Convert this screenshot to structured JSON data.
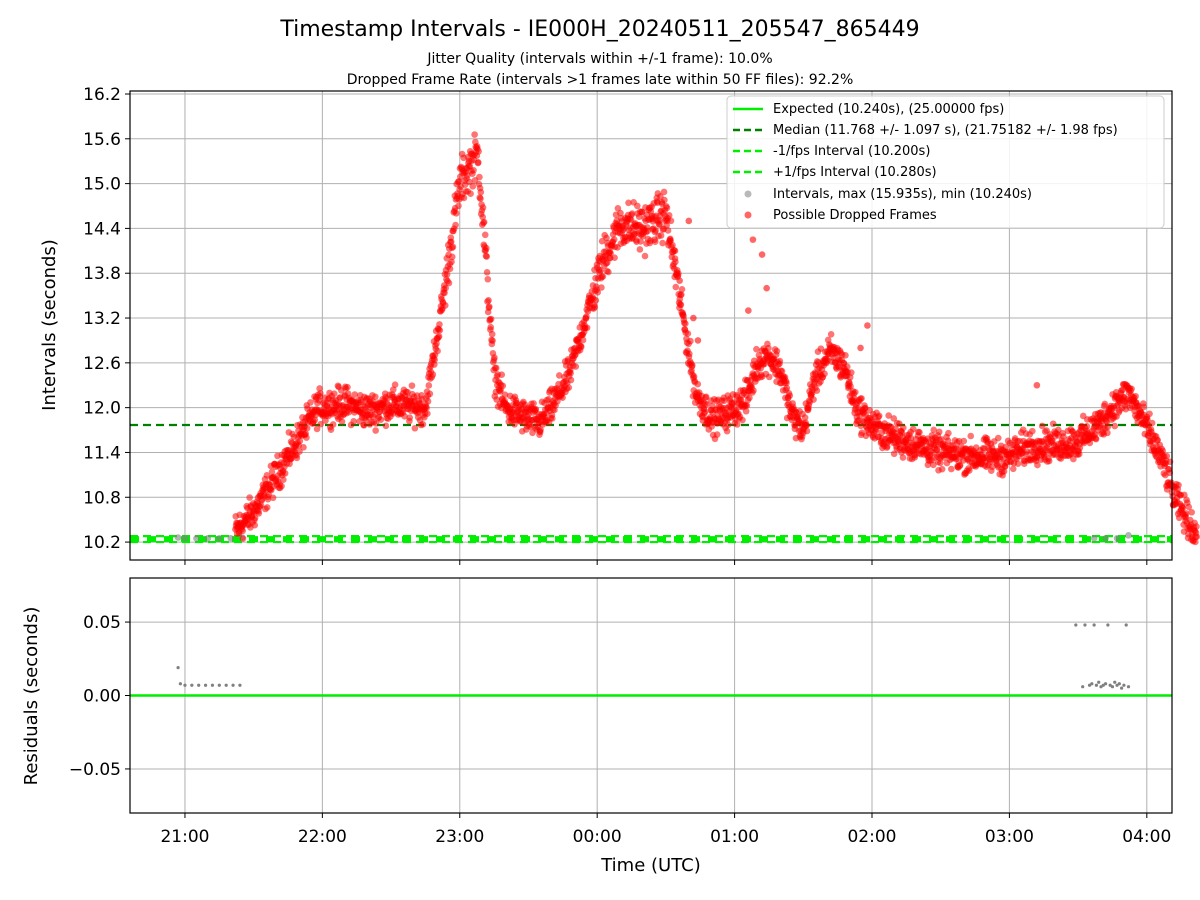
{
  "header": {
    "title": "Timestamp Intervals - IE000H_20240511_205547_865449",
    "subtitle1": "Jitter Quality (intervals within +/-1 frame): 10.0%",
    "subtitle2": "Dropped Frame Rate (intervals >1 frames late within 50 FF files): 92.2%"
  },
  "colors": {
    "expected": "#00ee00",
    "median": "#008000",
    "dropped": "#ff0000",
    "intervals": "#808080",
    "grid": "#b0b0b0"
  },
  "chart_data": [
    {
      "type": "scatter",
      "ylabel": "Intervals (seconds)",
      "xlim": [
        "20:36",
        "04:11"
      ],
      "ylim": [
        9.96,
        16.24
      ],
      "yticks": [
        "10.2",
        "10.8",
        "11.4",
        "12.0",
        "12.6",
        "13.2",
        "13.8",
        "14.4",
        "15.0",
        "15.6",
        "16.2"
      ],
      "xticks": [
        "21:00",
        "22:00",
        "23:00",
        "00:00",
        "01:00",
        "02:00",
        "03:00",
        "04:00"
      ],
      "grid": true,
      "legend_position": "top-right",
      "reference_lines": [
        {
          "label": "Expected (10.240s), (25.00000 fps)",
          "value": 10.24,
          "style": "solid"
        },
        {
          "label": "Median (11.768 +/- 1.097 s), (21.75182 +/- 1.98 fps)",
          "value": 11.768,
          "style": "dashed"
        },
        {
          "label": "-1/fps Interval (10.200s)",
          "value": 10.2,
          "style": "dashed"
        },
        {
          "label": "+1/fps Interval (10.280s)",
          "value": 10.28,
          "style": "dashed"
        }
      ],
      "series": [
        {
          "name": "Intervals, max (15.935s), min (10.240s)",
          "points": [
            [
              "20:57",
              10.26
            ],
            [
              "21:00",
              10.25
            ],
            [
              "21:05",
              10.25
            ],
            [
              "21:10",
              10.25
            ],
            [
              "21:15",
              10.25
            ],
            [
              "21:20",
              10.25
            ],
            [
              "21:25",
              10.26
            ],
            [
              "03:37",
              10.25
            ],
            [
              "03:42",
              10.25
            ],
            [
              "03:47",
              10.25
            ],
            [
              "03:52",
              10.29
            ]
          ]
        },
        {
          "name": "Possible Dropped Frames",
          "profile": [
            [
              "21:22",
              10.35
            ],
            [
              "21:30",
              10.6
            ],
            [
              "21:40",
              11.1
            ],
            [
              "21:50",
              11.6
            ],
            [
              "21:58",
              12.0
            ],
            [
              "22:10",
              12.05
            ],
            [
              "22:20",
              11.95
            ],
            [
              "22:30",
              12.05
            ],
            [
              "22:45",
              12.0
            ],
            [
              "22:52",
              13.3
            ],
            [
              "23:00",
              15.0
            ],
            [
              "23:08",
              15.4
            ],
            [
              "23:15",
              12.45
            ],
            [
              "23:20",
              12.0
            ],
            [
              "23:30",
              11.85
            ],
            [
              "23:35",
              11.8
            ],
            [
              "23:40",
              12.0
            ],
            [
              "23:48",
              12.45
            ],
            [
              "23:55",
              13.2
            ],
            [
              "00:03",
              14.0
            ],
            [
              "00:10",
              14.45
            ],
            [
              "00:20",
              14.4
            ],
            [
              "00:30",
              14.6
            ],
            [
              "00:43",
              12.2
            ],
            [
              "00:50",
              11.85
            ],
            [
              "00:58",
              11.95
            ],
            [
              "01:05",
              12.1
            ],
            [
              "01:10",
              12.6
            ],
            [
              "01:15",
              12.7
            ],
            [
              "01:20",
              12.5
            ],
            [
              "01:25",
              11.9
            ],
            [
              "01:30",
              11.7
            ],
            [
              "01:35",
              12.4
            ],
            [
              "01:42",
              12.75
            ],
            [
              "01:48",
              12.55
            ],
            [
              "01:53",
              12.0
            ],
            [
              "02:00",
              11.75
            ],
            [
              "02:10",
              11.6
            ],
            [
              "02:20",
              11.5
            ],
            [
              "02:30",
              11.4
            ],
            [
              "02:45",
              11.35
            ],
            [
              "03:00",
              11.35
            ],
            [
              "03:10",
              11.5
            ],
            [
              "03:20",
              11.5
            ],
            [
              "03:30",
              11.55
            ],
            [
              "03:40",
              11.8
            ],
            [
              "03:45",
              12.0
            ],
            [
              "03:52",
              12.2
            ],
            [
              "03:57",
              11.9
            ],
            [
              "04:02",
              11.6
            ],
            [
              "04:08",
              11.2
            ],
            [
              "04:12",
              10.8
            ],
            [
              "04:18",
              10.5
            ],
            [
              "04:22",
              10.3
            ]
          ],
          "spikes": [
            [
              "00:34",
              14.1
            ],
            [
              "00:36",
              13.7
            ],
            [
              "00:40",
              14.5
            ],
            [
              "00:42",
              13.2
            ],
            [
              "00:44",
              12.9
            ],
            [
              "01:06",
              13.3
            ],
            [
              "01:08",
              14.25
            ],
            [
              "01:12",
              14.05
            ],
            [
              "01:14",
              13.6
            ],
            [
              "01:55",
              12.8
            ],
            [
              "01:58",
              13.1
            ],
            [
              "03:12",
              12.3
            ]
          ]
        }
      ]
    },
    {
      "type": "scatter",
      "xlabel": "Time (UTC)",
      "ylabel": "Residuals (seconds)",
      "ylim": [
        -0.08,
        0.08
      ],
      "yticks": [
        "−0.05",
        "0.00",
        "0.05"
      ],
      "xticks": [
        "21:00",
        "22:00",
        "23:00",
        "00:00",
        "01:00",
        "02:00",
        "03:00",
        "04:00"
      ],
      "grid": true,
      "zero_line": 0,
      "series": [
        {
          "name": "residuals",
          "points": [
            [
              "20:57",
              0.019
            ],
            [
              "20:58",
              0.008
            ],
            [
              "21:00",
              0.007
            ],
            [
              "21:03",
              0.007
            ],
            [
              "21:06",
              0.007
            ],
            [
              "21:09",
              0.007
            ],
            [
              "21:12",
              0.007
            ],
            [
              "21:15",
              0.007
            ],
            [
              "21:18",
              0.007
            ],
            [
              "21:21",
              0.007
            ],
            [
              "21:24",
              0.007
            ],
            [
              "03:29",
              0.048
            ],
            [
              "03:32",
              0.006
            ],
            [
              "03:33",
              0.048
            ],
            [
              "03:35",
              0.007
            ],
            [
              "03:36",
              0.008
            ],
            [
              "03:37",
              0.048
            ],
            [
              "03:38",
              0.007
            ],
            [
              "03:39",
              0.009
            ],
            [
              "03:40",
              0.006
            ],
            [
              "03:41",
              0.007
            ],
            [
              "03:42",
              0.008
            ],
            [
              "03:43",
              0.048
            ],
            [
              "03:44",
              0.007
            ],
            [
              "03:45",
              0.006
            ],
            [
              "03:46",
              0.009
            ],
            [
              "03:47",
              0.007
            ],
            [
              "03:48",
              0.008
            ],
            [
              "03:49",
              0.005
            ],
            [
              "03:50",
              0.007
            ],
            [
              "03:51",
              0.048
            ],
            [
              "03:52",
              0.006
            ]
          ]
        }
      ]
    }
  ]
}
